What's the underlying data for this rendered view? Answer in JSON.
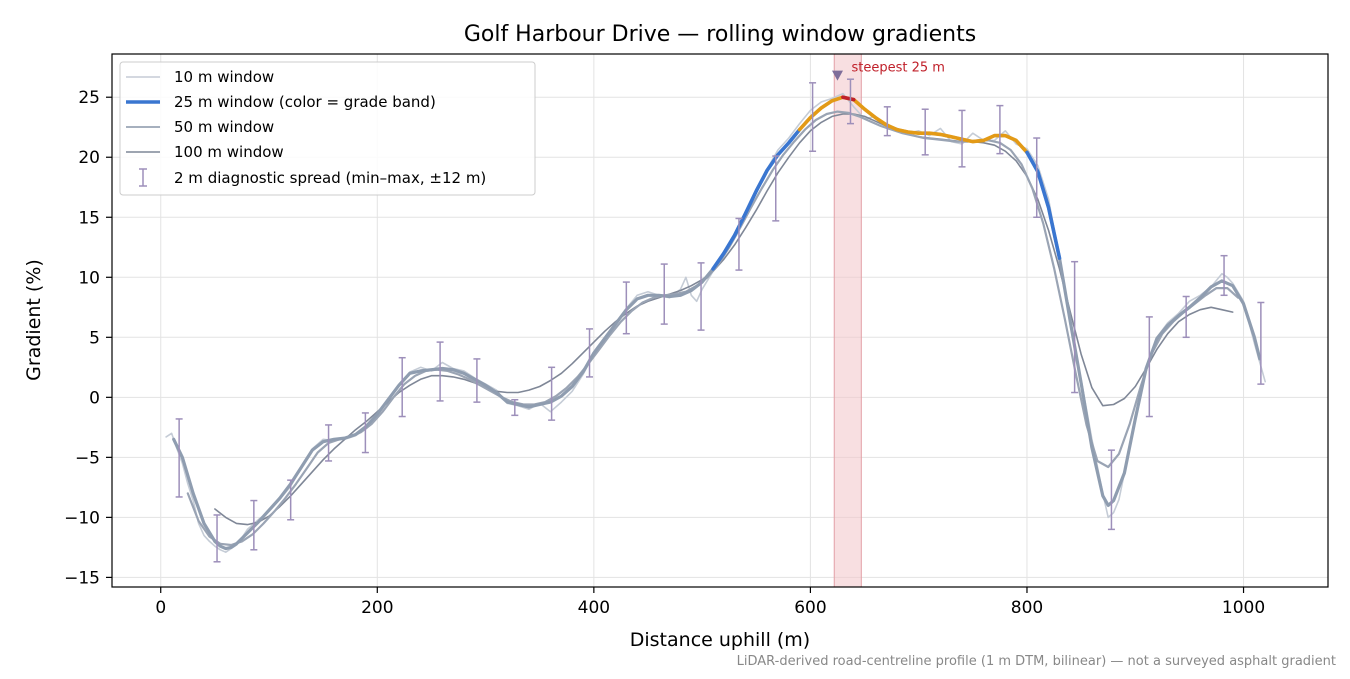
{
  "chart_data": {
    "type": "line",
    "title": "Golf Harbour Drive — rolling window gradients",
    "xlabel": "Distance uphill (m)",
    "ylabel": "Gradient (%)",
    "footnote": "LiDAR-derived road-centreline profile (1 m DTM, bilinear) — not a surveyed asphalt gradient",
    "xlim": [
      -45,
      1078
    ],
    "ylim": [
      -15.8,
      28.6
    ],
    "x_ticks": [
      0,
      200,
      400,
      600,
      800,
      1000
    ],
    "y_ticks": [
      -15,
      -10,
      -5,
      0,
      5,
      10,
      15,
      20,
      25
    ],
    "grid": true,
    "legend_position": "upper-left",
    "colors": {
      "w10": "#c5ccd6",
      "w25": "#8f9db0",
      "w50": "#9aa4b4",
      "w100": "#7f8797",
      "band_blue": "#3a76d0",
      "band_orange": "#e39a16",
      "band_red": "#c0202a",
      "errorbar": "#9d8fba",
      "highlight": "#f2c4c8",
      "marker": "#7e6d9a",
      "grid": "#e3e3e3"
    },
    "series": [
      {
        "name": "10 m window",
        "color": "#c5ccd6",
        "x": [
          5,
          10,
          15,
          20,
          25,
          30,
          35,
          40,
          45,
          50,
          55,
          60,
          65,
          70,
          75,
          80,
          90,
          100,
          110,
          120,
          130,
          140,
          150,
          160,
          170,
          180,
          190,
          200,
          210,
          220,
          230,
          240,
          250,
          260,
          270,
          280,
          290,
          300,
          310,
          320,
          330,
          340,
          350,
          360,
          370,
          380,
          390,
          400,
          410,
          420,
          430,
          440,
          450,
          460,
          470,
          480,
          485,
          490,
          495,
          500,
          510,
          520,
          530,
          540,
          550,
          560,
          570,
          580,
          590,
          600,
          610,
          620,
          630,
          640,
          650,
          660,
          670,
          680,
          690,
          700,
          710,
          720,
          730,
          740,
          750,
          760,
          770,
          780,
          790,
          800,
          810,
          820,
          830,
          840,
          850,
          860,
          870,
          875,
          880,
          885,
          890,
          900,
          910,
          920,
          930,
          940,
          950,
          960,
          970,
          980,
          985,
          990,
          1000,
          1010,
          1020
        ],
        "y": [
          -3.3,
          -3.0,
          -4.3,
          -5.5,
          -7.2,
          -8.6,
          -10.5,
          -11.5,
          -12.0,
          -12.4,
          -12.7,
          -12.9,
          -12.6,
          -12.3,
          -11.7,
          -11.0,
          -10.2,
          -9.5,
          -8.5,
          -7.4,
          -5.8,
          -4.3,
          -3.5,
          -3.6,
          -3.5,
          -3.2,
          -2.6,
          -1.6,
          -0.2,
          1.0,
          2.1,
          2.5,
          2.2,
          2.9,
          2.4,
          2.2,
          1.6,
          1.1,
          0.6,
          -0.5,
          -0.7,
          -1.0,
          -0.5,
          -1.2,
          -0.4,
          0.5,
          1.9,
          3.6,
          4.7,
          6.0,
          7.4,
          8.5,
          8.8,
          8.5,
          8.3,
          9.0,
          10.0,
          8.5,
          8.0,
          9.0,
          10.5,
          12.0,
          13.5,
          15.5,
          17.0,
          19.0,
          20.6,
          21.6,
          22.8,
          23.9,
          24.6,
          24.9,
          25.3,
          24.2,
          23.2,
          23.4,
          22.7,
          22.4,
          22.0,
          22.2,
          21.8,
          22.4,
          21.3,
          21.1,
          22.0,
          21.4,
          21.4,
          22.2,
          21.1,
          20.7,
          19.3,
          16.5,
          11.5,
          6.0,
          1.5,
          -3.5,
          -8.0,
          -10.0,
          -9.6,
          -8.5,
          -6.3,
          -1.5,
          2.5,
          5.0,
          6.2,
          7.0,
          8.0,
          8.5,
          9.2,
          10.3,
          10.0,
          9.5,
          8.0,
          4.5,
          1.3
        ]
      },
      {
        "name": "25 m window (color = grade band)",
        "color": "#8f9db0",
        "bands": [
          {
            "label": "blue",
            "color": "#3a76d0",
            "x_from": 500,
            "x_to": 590,
            "min_grade": 10
          },
          {
            "label": "orange",
            "color": "#e39a16",
            "x_from": 590,
            "x_to": 800
          },
          {
            "label": "red",
            "color": "#c0202a",
            "x_from": 625,
            "x_to": 645
          },
          {
            "label": "blue",
            "color": "#3a76d0",
            "x_from": 800,
            "x_to": 837
          }
        ],
        "x": [
          12,
          20,
          30,
          40,
          50,
          55,
          60,
          65,
          70,
          80,
          90,
          100,
          110,
          120,
          130,
          140,
          150,
          160,
          170,
          180,
          190,
          200,
          210,
          220,
          230,
          240,
          250,
          260,
          270,
          280,
          290,
          300,
          310,
          320,
          330,
          340,
          350,
          360,
          370,
          380,
          390,
          400,
          410,
          420,
          430,
          440,
          450,
          460,
          470,
          480,
          490,
          500,
          510,
          520,
          530,
          540,
          550,
          560,
          570,
          580,
          590,
          600,
          610,
          620,
          630,
          640,
          650,
          660,
          670,
          680,
          690,
          700,
          710,
          720,
          730,
          740,
          750,
          760,
          770,
          780,
          790,
          800,
          810,
          820,
          830,
          840,
          850,
          860,
          870,
          875,
          880,
          890,
          900,
          910,
          920,
          930,
          940,
          950,
          960,
          970,
          980,
          990,
          1000,
          1010,
          1015
        ],
        "y": [
          -3.5,
          -5.0,
          -8.0,
          -10.5,
          -12.0,
          -12.4,
          -12.6,
          -12.5,
          -12.2,
          -11.3,
          -10.4,
          -9.4,
          -8.4,
          -7.2,
          -5.8,
          -4.4,
          -3.7,
          -3.5,
          -3.4,
          -3.1,
          -2.4,
          -1.4,
          -0.2,
          1.0,
          2.0,
          2.2,
          2.3,
          2.4,
          2.3,
          2.0,
          1.5,
          1.0,
          0.4,
          -0.4,
          -0.6,
          -0.8,
          -0.6,
          -0.4,
          0.1,
          0.9,
          2.1,
          3.7,
          4.9,
          6.1,
          7.3,
          8.2,
          8.5,
          8.5,
          8.4,
          8.5,
          8.9,
          9.6,
          10.7,
          12.0,
          13.5,
          15.3,
          17.2,
          18.9,
          20.2,
          21.2,
          22.3,
          23.3,
          24.1,
          24.7,
          25.0,
          24.8,
          24.0,
          23.3,
          22.7,
          22.3,
          22.1,
          22.0,
          22.0,
          21.9,
          21.7,
          21.5,
          21.3,
          21.4,
          21.8,
          21.8,
          21.4,
          20.4,
          18.8,
          15.8,
          11.6,
          6.3,
          1.2,
          -4.2,
          -8.2,
          -9.0,
          -8.6,
          -6.3,
          -1.8,
          2.4,
          4.9,
          6.0,
          6.8,
          7.5,
          8.3,
          9.2,
          9.7,
          9.3,
          7.8,
          5.0,
          3.2
        ]
      },
      {
        "name": "50 m window",
        "color": "#9aa4b4",
        "x": [
          25,
          35,
          45,
          55,
          65,
          75,
          85,
          95,
          105,
          115,
          125,
          135,
          145,
          155,
          165,
          175,
          185,
          195,
          205,
          215,
          225,
          235,
          245,
          255,
          265,
          275,
          285,
          295,
          305,
          315,
          325,
          335,
          345,
          355,
          365,
          375,
          385,
          395,
          405,
          415,
          425,
          435,
          445,
          455,
          465,
          475,
          485,
          495,
          505,
          515,
          525,
          535,
          545,
          555,
          565,
          575,
          585,
          595,
          605,
          615,
          625,
          635,
          645,
          655,
          665,
          675,
          685,
          695,
          705,
          715,
          725,
          735,
          745,
          755,
          765,
          775,
          785,
          795,
          805,
          815,
          825,
          835,
          845,
          855,
          865,
          875,
          885,
          895,
          905,
          915,
          925,
          935,
          945,
          955,
          965,
          975,
          985,
          995
        ],
        "y": [
          -8.0,
          -10.3,
          -11.6,
          -12.2,
          -12.3,
          -12.0,
          -11.4,
          -10.5,
          -9.5,
          -8.4,
          -7.2,
          -5.9,
          -4.6,
          -3.8,
          -3.5,
          -3.3,
          -2.9,
          -2.2,
          -1.2,
          0.0,
          1.1,
          1.8,
          2.2,
          2.3,
          2.2,
          1.9,
          1.5,
          1.0,
          0.5,
          0.0,
          -0.4,
          -0.6,
          -0.6,
          -0.4,
          0.1,
          0.8,
          1.7,
          2.8,
          4.0,
          5.2,
          6.3,
          7.2,
          7.9,
          8.3,
          8.5,
          8.6,
          8.8,
          9.3,
          10.0,
          11.1,
          12.5,
          14.1,
          15.8,
          17.4,
          18.9,
          20.2,
          21.3,
          22.3,
          23.1,
          23.6,
          23.8,
          23.7,
          23.4,
          23.0,
          22.6,
          22.3,
          22.0,
          21.8,
          21.6,
          21.5,
          21.4,
          21.3,
          21.3,
          21.4,
          21.4,
          21.2,
          20.6,
          19.4,
          17.4,
          14.5,
          10.8,
          6.5,
          2.0,
          -2.3,
          -5.3,
          -5.8,
          -4.7,
          -2.2,
          0.9,
          3.6,
          5.3,
          6.3,
          7.1,
          7.8,
          8.5,
          9.1,
          9.1,
          8.3
        ]
      },
      {
        "name": "100 m window",
        "color": "#7f8797",
        "x": [
          50,
          60,
          70,
          80,
          90,
          100,
          110,
          120,
          130,
          140,
          150,
          160,
          170,
          180,
          190,
          200,
          210,
          220,
          230,
          240,
          250,
          260,
          270,
          280,
          290,
          300,
          310,
          320,
          330,
          340,
          350,
          360,
          370,
          380,
          390,
          400,
          410,
          420,
          430,
          440,
          450,
          460,
          470,
          480,
          490,
          500,
          510,
          520,
          530,
          540,
          550,
          560,
          570,
          580,
          590,
          600,
          610,
          620,
          630,
          640,
          650,
          660,
          670,
          680,
          690,
          700,
          710,
          720,
          730,
          740,
          750,
          760,
          770,
          780,
          790,
          800,
          810,
          820,
          830,
          840,
          850,
          860,
          870,
          880,
          890,
          900,
          910,
          920,
          930,
          940,
          950,
          960,
          970,
          980,
          990
        ],
        "y": [
          -9.3,
          -10.0,
          -10.5,
          -10.6,
          -10.4,
          -9.9,
          -9.1,
          -8.2,
          -7.2,
          -6.2,
          -5.2,
          -4.3,
          -3.5,
          -2.7,
          -2.0,
          -1.2,
          -0.4,
          0.4,
          1.0,
          1.5,
          1.8,
          1.8,
          1.7,
          1.5,
          1.2,
          0.8,
          0.5,
          0.4,
          0.4,
          0.6,
          0.9,
          1.4,
          2.0,
          2.8,
          3.7,
          4.6,
          5.5,
          6.3,
          7.0,
          7.6,
          8.0,
          8.3,
          8.6,
          8.9,
          9.3,
          9.8,
          10.5,
          11.5,
          12.7,
          14.1,
          15.6,
          17.2,
          18.7,
          20.0,
          21.2,
          22.2,
          22.9,
          23.4,
          23.6,
          23.6,
          23.4,
          23.0,
          22.6,
          22.2,
          21.9,
          21.7,
          21.6,
          21.5,
          21.4,
          21.3,
          21.3,
          21.2,
          21.0,
          20.5,
          19.7,
          18.4,
          16.5,
          13.9,
          10.7,
          7.1,
          3.6,
          0.8,
          -0.7,
          -0.6,
          -0.1,
          0.9,
          2.4,
          4.0,
          5.3,
          6.3,
          6.9,
          7.3,
          7.5,
          7.3,
          7.1
        ]
      }
    ],
    "errorbars": {
      "name": "2 m diagnostic spread (min–max, ±12 m)",
      "color": "#9d8fba",
      "points": [
        {
          "x": 17,
          "lo": -8.3,
          "hi": -1.8
        },
        {
          "x": 52,
          "lo": -13.7,
          "hi": -9.8
        },
        {
          "x": 86,
          "lo": -12.7,
          "hi": -8.6
        },
        {
          "x": 120,
          "lo": -10.2,
          "hi": -6.9
        },
        {
          "x": 155,
          "lo": -5.3,
          "hi": -2.3
        },
        {
          "x": 189,
          "lo": -4.6,
          "hi": -1.3
        },
        {
          "x": 223,
          "lo": -1.6,
          "hi": 3.3
        },
        {
          "x": 258,
          "lo": -0.3,
          "hi": 4.6
        },
        {
          "x": 292,
          "lo": -0.4,
          "hi": 3.2
        },
        {
          "x": 327,
          "lo": -1.5,
          "hi": -0.2
        },
        {
          "x": 361,
          "lo": -1.9,
          "hi": 2.5
        },
        {
          "x": 396,
          "lo": 1.7,
          "hi": 5.7
        },
        {
          "x": 430,
          "lo": 5.3,
          "hi": 9.6
        },
        {
          "x": 465,
          "lo": 6.1,
          "hi": 11.1
        },
        {
          "x": 499,
          "lo": 5.6,
          "hi": 11.2
        },
        {
          "x": 534,
          "lo": 10.6,
          "hi": 14.9
        },
        {
          "x": 568,
          "lo": 14.7,
          "hi": 20.1
        },
        {
          "x": 602,
          "lo": 20.5,
          "hi": 26.2
        },
        {
          "x": 637,
          "lo": 22.8,
          "hi": 26.5
        },
        {
          "x": 671,
          "lo": 21.8,
          "hi": 24.2
        },
        {
          "x": 706,
          "lo": 20.2,
          "hi": 24.0
        },
        {
          "x": 740,
          "lo": 19.2,
          "hi": 23.9
        },
        {
          "x": 775,
          "lo": 20.3,
          "hi": 24.3
        },
        {
          "x": 809,
          "lo": 15.0,
          "hi": 21.6
        },
        {
          "x": 844,
          "lo": 0.4,
          "hi": 11.3
        },
        {
          "x": 878,
          "lo": -11.0,
          "hi": -4.4
        },
        {
          "x": 913,
          "lo": -1.6,
          "hi": 6.7
        },
        {
          "x": 947,
          "lo": 5.0,
          "hi": 8.4
        },
        {
          "x": 982,
          "lo": 8.5,
          "hi": 11.8
        },
        {
          "x": 1016,
          "lo": 1.1,
          "hi": 7.9
        }
      ]
    },
    "highlight": {
      "label": "steepest 25 m",
      "x_from": 622,
      "x_to": 647,
      "marker_x": 625,
      "marker_y": 26.8
    }
  }
}
